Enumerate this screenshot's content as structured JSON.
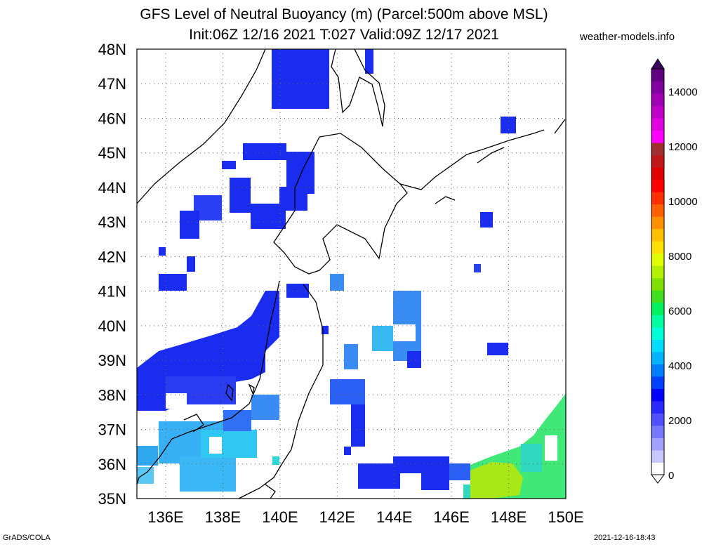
{
  "title_line1": "GFS Level of Neutral Buoyancy (m) (Parcel:500m above MSL)",
  "title_line2": "Init:06Z 12/16 2021 T:027 Valid:09Z 12/17 2021",
  "site": "weather-models.info",
  "footer_left": "GrADS/COLA",
  "footer_right": "2021-12-16-18:43",
  "map": {
    "lat_labels": [
      "48N",
      "47N",
      "46N",
      "45N",
      "44N",
      "43N",
      "42N",
      "41N",
      "40N",
      "39N",
      "38N",
      "37N",
      "36N",
      "35N"
    ],
    "lon_labels": [
      "136E",
      "138E",
      "140E",
      "142E",
      "144E",
      "146E",
      "148E",
      "150E"
    ]
  },
  "colorbar": {
    "labels": [
      "14000",
      "12000",
      "10000",
      "8000",
      "6000",
      "4000",
      "2000",
      "0"
    ],
    "colors": [
      "#ffffff",
      "#c8c8ff",
      "#a0a0ff",
      "#7878ff",
      "#5050ff",
      "#2828ff",
      "#0000ff",
      "#0040ff",
      "#0080ff",
      "#00b4ff",
      "#00dcff",
      "#00ffd8",
      "#00ffa0",
      "#00f060",
      "#40e020",
      "#80e000",
      "#b0f000",
      "#e0ff00",
      "#ffe000",
      "#ffc000",
      "#ff9000",
      "#ff6000",
      "#ff3000",
      "#ff0000",
      "#e00000",
      "#c01818",
      "#a03030",
      "#ff00ff",
      "#e000e0",
      "#c000c8",
      "#a000b4",
      "#8000a0",
      "#600080"
    ]
  }
}
